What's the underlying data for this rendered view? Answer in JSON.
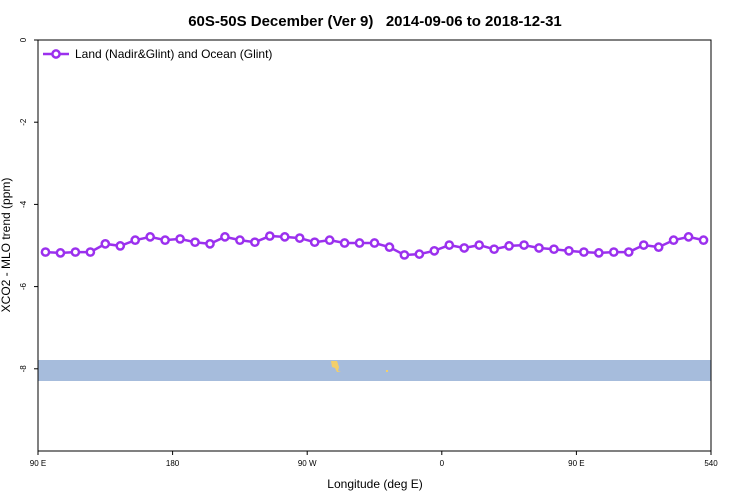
{
  "chart_data": {
    "type": "line",
    "title": "60S-50S December (Ver 9)   2014-09-06 to 2018-12-31",
    "xlabel": "Longitude (deg E)",
    "ylabel": "XCO2 - MLO trend (ppm)",
    "x": [
      95,
      105,
      115,
      125,
      135,
      145,
      155,
      165,
      175,
      185,
      195,
      205,
      215,
      225,
      235,
      245,
      255,
      265,
      275,
      285,
      295,
      305,
      315,
      325,
      335,
      345,
      355,
      365,
      375,
      385,
      395,
      405,
      415,
      425,
      435,
      445,
      455,
      465,
      475,
      485,
      495,
      505,
      515,
      525,
      535
    ],
    "series": [
      {
        "name": "Land (Nadir&Glint) and Ocean (Glint)",
        "color": "#9b30ee",
        "values": [
          -5.16,
          -5.18,
          -5.16,
          -5.16,
          -4.96,
          -5.01,
          -4.87,
          -4.79,
          -4.87,
          -4.84,
          -4.92,
          -4.96,
          -4.79,
          -4.87,
          -4.92,
          -4.77,
          -4.79,
          -4.82,
          -4.92,
          -4.87,
          -4.94,
          -4.94,
          -4.94,
          -5.04,
          -5.23,
          -5.21,
          -5.13,
          -4.99,
          -5.06,
          -4.99,
          -5.09,
          -5.01,
          -4.99,
          -5.06,
          -5.09,
          -5.13,
          -5.16,
          -5.18,
          -5.16,
          -5.16,
          -4.99,
          -5.04,
          -4.87,
          -4.79,
          -4.87
        ]
      }
    ],
    "xlim": [
      90,
      540
    ],
    "xticks": [
      {
        "value": 90,
        "label": "90 E"
      },
      180,
      {
        "value": 270,
        "label": "90 W"
      },
      {
        "value": 360,
        "label": "0"
      },
      {
        "value": 450,
        "label": "90 E"
      },
      540
    ],
    "ylim": [
      -10,
      0
    ],
    "yticks": [
      0,
      -2,
      -4,
      -6,
      -8
    ],
    "legend": "top-left"
  }
}
